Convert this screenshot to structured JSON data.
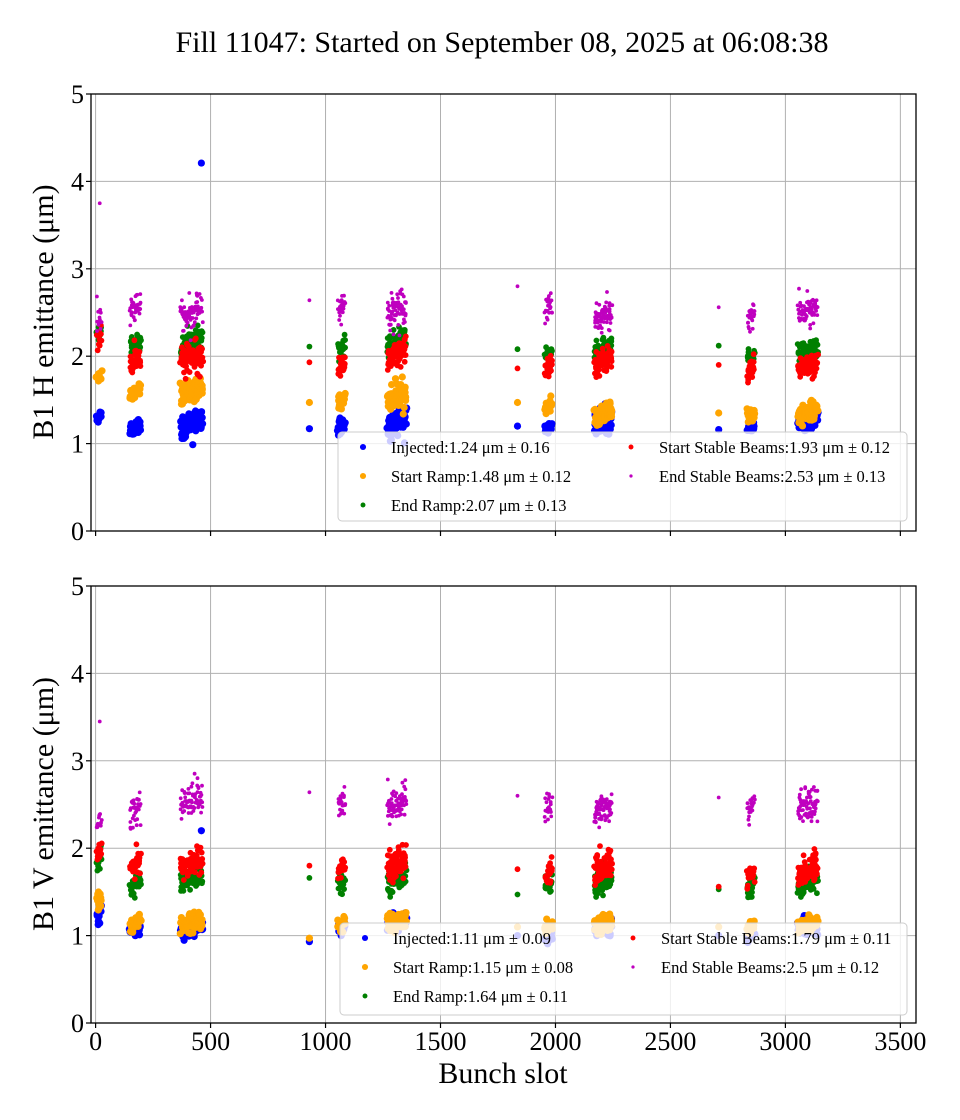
{
  "chart_data": {
    "type": "scatter",
    "title": "Fill 11047: Started on September 08, 2025 at 06:08:38",
    "xlabel": "Bunch slot",
    "xlim": [
      -20,
      3568
    ],
    "xticks": [
      0,
      500,
      1000,
      1500,
      2000,
      2500,
      3000,
      3500
    ],
    "xtick_labels": [
      "0",
      "500",
      "1000",
      "1500",
      "2000",
      "2500",
      "3000",
      "3500"
    ],
    "grid": true,
    "legend_placement": "lower-right",
    "series_styles": [
      {
        "key": "injected",
        "color": "#0000ff",
        "marker": "large"
      },
      {
        "key": "start_ramp",
        "color": "#ffa500",
        "marker": "large"
      },
      {
        "key": "end_ramp",
        "color": "#008000",
        "marker": "medium"
      },
      {
        "key": "start_stable",
        "color": "#ff0000",
        "marker": "medium"
      },
      {
        "key": "end_stable",
        "color": "#bf00bf",
        "marker": "small"
      }
    ],
    "cluster_slots": [
      {
        "x0": 5,
        "x1": 25,
        "n": 12
      },
      {
        "x0": 150,
        "x1": 195,
        "n": 36
      },
      {
        "x0": 370,
        "x1": 465,
        "n": 72
      },
      {
        "x0": 930,
        "x1": 930,
        "n": 1
      },
      {
        "x0": 1055,
        "x1": 1085,
        "n": 24
      },
      {
        "x0": 1270,
        "x1": 1350,
        "n": 72
      },
      {
        "x0": 1835,
        "x1": 1835,
        "n": 1
      },
      {
        "x0": 1955,
        "x1": 1985,
        "n": 24
      },
      {
        "x0": 2170,
        "x1": 2245,
        "n": 72
      },
      {
        "x0": 2710,
        "x1": 2710,
        "n": 1
      },
      {
        "x0": 2835,
        "x1": 2865,
        "n": 24
      },
      {
        "x0": 3055,
        "x1": 3140,
        "n": 72
      }
    ],
    "panels": [
      {
        "ylabel": "B1 H emittance (μm)",
        "ylim": [
          0,
          5
        ],
        "yticks": [
          0,
          1,
          2,
          3,
          4,
          5
        ],
        "ytick_labels": [
          "0",
          "1",
          "2",
          "3",
          "4",
          "5"
        ],
        "legend": [
          {
            "label": "Injected:1.24 μm ± 0.16",
            "key": "injected"
          },
          {
            "label": "Start Ramp:1.48 μm ± 0.12",
            "key": "start_ramp"
          },
          {
            "label": "End Ramp:2.07 μm ± 0.13",
            "key": "end_ramp"
          },
          {
            "label": "Start Stable Beams:1.93 μm ± 0.12",
            "key": "start_stable"
          },
          {
            "label": "End Stable Beams:2.53 μm ± 0.13",
            "key": "end_stable"
          }
        ],
        "series": [
          {
            "key": "injected",
            "name": "Injected",
            "mean": 1.24,
            "std": 0.16,
            "cluster_means": [
              1.33,
              1.2,
              1.22,
              1.17,
              1.2,
              1.25,
              1.2,
              1.18,
              1.25,
              1.16,
              1.18,
              1.25
            ],
            "cluster_spread": [
              0.04,
              0.04,
              0.08,
              0,
              0.04,
              0.09,
              0,
              0.03,
              0.07,
              0,
              0.03,
              0.05
            ],
            "outliers": [
              {
                "x": 460,
                "y": 4.21
              }
            ]
          },
          {
            "key": "start_ramp",
            "name": "Start Ramp",
            "mean": 1.48,
            "std": 0.12,
            "cluster_means": [
              1.78,
              1.6,
              1.6,
              1.47,
              1.5,
              1.55,
              1.47,
              1.42,
              1.35,
              1.35,
              1.32,
              1.35
            ],
            "cluster_spread": [
              0.04,
              0.04,
              0.08,
              0,
              0.04,
              0.07,
              0,
              0.03,
              0.05,
              0,
              0.03,
              0.05
            ],
            "outliers": []
          },
          {
            "key": "end_ramp",
            "name": "End Ramp",
            "mean": 2.07,
            "std": 0.13,
            "cluster_means": [
              2.3,
              2.15,
              2.15,
              2.11,
              2.1,
              2.15,
              2.08,
              2.03,
              2.05,
              2.12,
              2.0,
              2.05
            ],
            "cluster_spread": [
              0.05,
              0.05,
              0.07,
              0,
              0.05,
              0.07,
              0,
              0.04,
              0.06,
              0,
              0.04,
              0.06
            ],
            "outliers": []
          },
          {
            "key": "start_stable",
            "name": "Start Stable Beams",
            "mean": 1.93,
            "std": 0.12,
            "cluster_means": [
              2.2,
              1.97,
              2.0,
              1.93,
              1.9,
              2.0,
              1.86,
              1.88,
              1.95,
              1.9,
              1.85,
              1.9
            ],
            "cluster_spread": [
              0.06,
              0.08,
              0.08,
              0,
              0.06,
              0.08,
              0,
              0.06,
              0.07,
              0,
              0.06,
              0.07
            ],
            "outliers": []
          },
          {
            "key": "end_stable",
            "name": "End Stable Beams",
            "mean": 2.53,
            "std": 0.13,
            "cluster_means": [
              2.45,
              2.55,
              2.5,
              2.64,
              2.55,
              2.55,
              2.8,
              2.55,
              2.45,
              2.56,
              2.45,
              2.52
            ],
            "cluster_spread": [
              0.08,
              0.08,
              0.1,
              0,
              0.08,
              0.1,
              0,
              0.08,
              0.08,
              0,
              0.08,
              0.09
            ],
            "outliers": [
              {
                "x": 18,
                "y": 3.75
              }
            ]
          }
        ]
      },
      {
        "ylabel": "B1 V emittance (μm)",
        "ylim": [
          0,
          5
        ],
        "yticks": [
          0,
          1,
          2,
          3,
          4,
          5
        ],
        "ytick_labels": [
          "0",
          "1",
          "2",
          "3",
          "4",
          "5"
        ],
        "legend": [
          {
            "label": "Injected:1.11 μm ± 0.09",
            "key": "injected"
          },
          {
            "label": "Start Ramp:1.15 μm ± 0.08",
            "key": "start_ramp"
          },
          {
            "label": "End Ramp:1.64 μm ± 0.11",
            "key": "end_ramp"
          },
          {
            "label": "Start Stable Beams:1.79 μm ± 0.11",
            "key": "start_stable"
          },
          {
            "label": "End Stable Beams:2.5 μm ± 0.12",
            "key": "end_stable"
          }
        ],
        "series": [
          {
            "key": "injected",
            "name": "Injected",
            "mean": 1.11,
            "std": 0.09,
            "cluster_means": [
              1.25,
              1.07,
              1.07,
              0.93,
              1.1,
              1.15,
              1.0,
              1.0,
              1.1,
              1.0,
              1.0,
              1.1
            ],
            "cluster_spread": [
              0.05,
              0.03,
              0.04,
              0,
              0.04,
              0.05,
              0,
              0.03,
              0.05,
              0,
              0.03,
              0.05
            ],
            "outliers": [
              {
                "x": 460,
                "y": 2.2
              }
            ]
          },
          {
            "key": "start_ramp",
            "name": "Start Ramp",
            "mean": 1.15,
            "std": 0.08,
            "cluster_means": [
              1.4,
              1.15,
              1.15,
              0.97,
              1.13,
              1.17,
              1.1,
              1.1,
              1.15,
              1.1,
              1.1,
              1.15
            ],
            "cluster_spread": [
              0.05,
              0.04,
              0.05,
              0,
              0.04,
              0.05,
              0,
              0.04,
              0.05,
              0,
              0.04,
              0.05
            ],
            "outliers": []
          },
          {
            "key": "end_ramp",
            "name": "End Ramp",
            "mean": 1.64,
            "std": 0.11,
            "cluster_means": [
              1.85,
              1.6,
              1.65,
              1.66,
              1.6,
              1.65,
              1.47,
              1.6,
              1.62,
              1.53,
              1.55,
              1.62
            ],
            "cluster_spread": [
              0.06,
              0.06,
              0.07,
              0,
              0.05,
              0.06,
              0,
              0.06,
              0.06,
              0,
              0.06,
              0.06
            ],
            "outliers": []
          },
          {
            "key": "start_stable",
            "name": "Start Stable Beams",
            "mean": 1.79,
            "std": 0.11,
            "cluster_means": [
              1.98,
              1.8,
              1.83,
              1.8,
              1.78,
              1.82,
              1.76,
              1.72,
              1.78,
              1.56,
              1.7,
              1.75
            ],
            "cluster_spread": [
              0.05,
              0.07,
              0.08,
              0,
              0.05,
              0.08,
              0,
              0.06,
              0.08,
              0,
              0.06,
              0.08
            ],
            "outliers": []
          },
          {
            "key": "end_stable",
            "name": "End Stable Beams",
            "mean": 2.5,
            "std": 0.12,
            "cluster_means": [
              2.3,
              2.45,
              2.55,
              2.64,
              2.5,
              2.5,
              2.6,
              2.48,
              2.45,
              2.58,
              2.48,
              2.5
            ],
            "cluster_spread": [
              0.06,
              0.1,
              0.09,
              0,
              0.07,
              0.09,
              0,
              0.08,
              0.08,
              0,
              0.08,
              0.09
            ],
            "outliers": [
              {
                "x": 18,
                "y": 3.45
              }
            ]
          }
        ]
      }
    ]
  }
}
